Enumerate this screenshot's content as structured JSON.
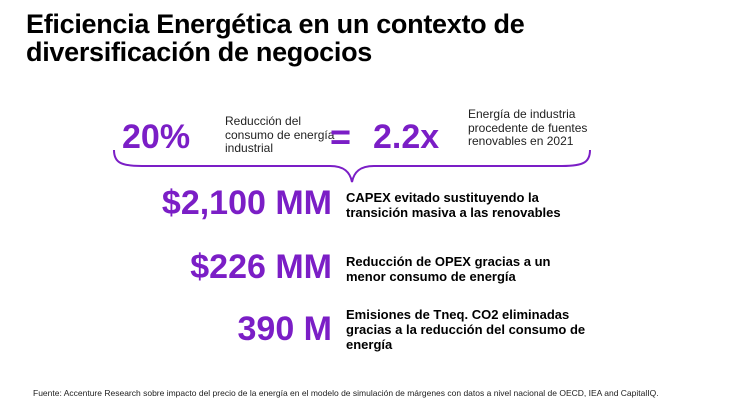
{
  "title": "Eficiencia Energética en un contexto de diversificación de negocios",
  "highlight": {
    "percent": "20%",
    "percent_label": "Reducción del consumo de energía industrial",
    "equals": "=",
    "ratio": "2.2x",
    "ratio_label": "Energía de industria procedente de fuentes renovables en 2021"
  },
  "stats": [
    {
      "value": "$2,100 MM",
      "description": "CAPEX evitado sustituyendo la transición masiva a las renovables"
    },
    {
      "value": "$226 MM",
      "description": "Reducción de OPEX gracias a un menor consumo de energía"
    },
    {
      "value": "390 M",
      "description": "Emisiones de Tneq. CO2 eliminadas gracias a la reducción del consumo de energía"
    }
  ],
  "source": "Fuente: Accenture Research sobre impacto del precio de la energía en el modelo de simulación de márgenes con datos a nivel nacional de OECD, IEA and CapitalIQ.",
  "colors": {
    "accent": "#7b1ec6",
    "text": "#000000"
  }
}
